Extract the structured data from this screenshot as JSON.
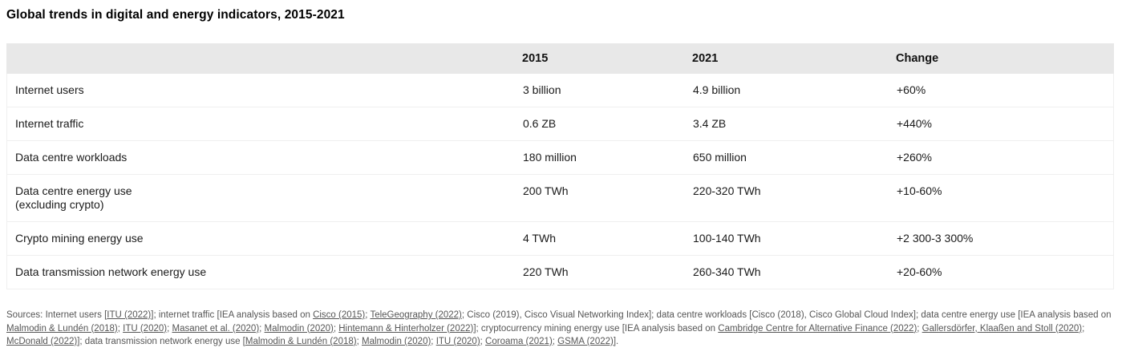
{
  "chart_data": {
    "type": "table",
    "title": "Global trends in digital and energy indicators, 2015-2021",
    "columns": [
      "",
      "2015",
      "2021",
      "Change"
    ],
    "rows": [
      {
        "indicator": [
          "Internet users"
        ],
        "values": [
          "3 billion",
          "4.9 billion",
          "+60%"
        ]
      },
      {
        "indicator": [
          "Internet traffic"
        ],
        "values": [
          "0.6 ZB",
          "3.4 ZB",
          "+440%"
        ]
      },
      {
        "indicator": [
          "Data centre workloads"
        ],
        "values": [
          "180 million",
          "650 million",
          "+260%"
        ]
      },
      {
        "indicator": [
          "Data centre energy use",
          "(excluding crypto)"
        ],
        "values": [
          "200 TWh",
          "220-320 TWh",
          "+10-60%"
        ]
      },
      {
        "indicator": [
          "Crypto mining energy use"
        ],
        "values": [
          "4 TWh",
          "100-140 TWh",
          "+2 300-3 300%"
        ]
      },
      {
        "indicator": [
          "Data transmission network energy use"
        ],
        "values": [
          "220 TWh",
          "260-340 TWh",
          "+20-60%"
        ]
      }
    ],
    "layout_hints": {
      "header_background": "#e8e8e8",
      "row_divider_color": "#efefef",
      "grid": "horizontal-only"
    }
  },
  "sources": {
    "segments": [
      {
        "text": "Sources: Internet users [",
        "link": false
      },
      {
        "text": "ITU (2022)",
        "link": true
      },
      {
        "text": "]; internet traffic [IEA analysis based on ",
        "link": false
      },
      {
        "text": "Cisco (2015)",
        "link": true
      },
      {
        "text": "; ",
        "link": false
      },
      {
        "text": "TeleGeography (2022)",
        "link": true
      },
      {
        "text": "; Cisco (2019), Cisco Visual Networking Index]; data centre workloads [Cisco (2018), Cisco Global Cloud Index]; data centre energy use [IEA analysis based on ",
        "link": false
      },
      {
        "text": "Malmodin & Lundén (2018)",
        "link": true
      },
      {
        "text": "; ",
        "link": false
      },
      {
        "text": "ITU (2020)",
        "link": true
      },
      {
        "text": "; ",
        "link": false
      },
      {
        "text": "Masanet et al. (2020)",
        "link": true
      },
      {
        "text": "; ",
        "link": false
      },
      {
        "text": "Malmodin (2020)",
        "link": true
      },
      {
        "text": "; ",
        "link": false
      },
      {
        "text": "Hintemann & Hinterholzer (2022)",
        "link": true
      },
      {
        "text": "]; cryptocurrency mining energy use [IEA analysis based on ",
        "link": false
      },
      {
        "text": "Cambridge Centre for Alternative Finance (2022)",
        "link": true
      },
      {
        "text": "; ",
        "link": false
      },
      {
        "text": "Gallersdörfer, Klaaßen and Stoll (2020)",
        "link": true
      },
      {
        "text": "; ",
        "link": false
      },
      {
        "text": "McDonald (2022)",
        "link": true
      },
      {
        "text": "]; data transmission network energy use [",
        "link": false
      },
      {
        "text": "Malmodin & Lundén (2018)",
        "link": true
      },
      {
        "text": "; ",
        "link": false
      },
      {
        "text": "Malmodin (2020)",
        "link": true
      },
      {
        "text": "; ",
        "link": false
      },
      {
        "text": "ITU (2020)",
        "link": true
      },
      {
        "text": "; ",
        "link": false
      },
      {
        "text": "Coroama (2021)",
        "link": true
      },
      {
        "text": "; ",
        "link": false
      },
      {
        "text": "GSMA (2022)",
        "link": true
      },
      {
        "text": "].",
        "link": false
      }
    ]
  },
  "colors": {
    "header_background": "#e8e8e8",
    "body_text": "#1a1a1a",
    "source_text": "#565656",
    "divider": "#efefef",
    "background": "#ffffff"
  }
}
